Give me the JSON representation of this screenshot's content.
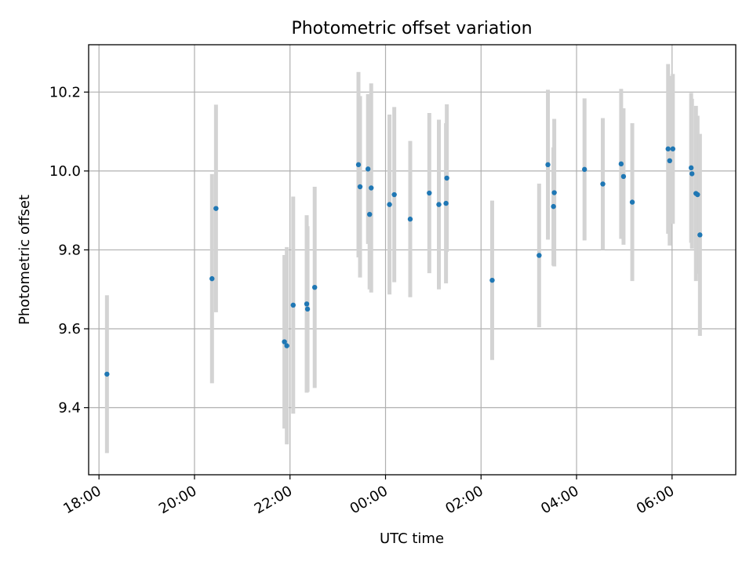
{
  "chart_data": {
    "type": "scatter",
    "title": "Photometric offset variation",
    "xlabel": "UTC time",
    "ylabel": "Photometric offset",
    "x_axis_type": "time",
    "xlim": [
      "18:00",
      "07:20"
    ],
    "ylim": [
      9.23,
      10.32
    ],
    "x_ticks": [
      "18:00",
      "20:00",
      "22:00",
      "00:00",
      "02:00",
      "04:00",
      "06:00"
    ],
    "y_ticks": [
      9.4,
      9.6,
      9.8,
      10.0,
      10.2
    ],
    "y_tick_labels": [
      "9.4",
      "9.6",
      "9.8",
      "10.0",
      "10.2"
    ],
    "grid": true,
    "marker_color": "#1f77b4",
    "errorbar_color": "#d3d3d3",
    "points": [
      {
        "x": "18:10",
        "y": 9.485,
        "err": 0.2
      },
      {
        "x": "20:22",
        "y": 9.727,
        "err": 0.265
      },
      {
        "x": "20:27",
        "y": 9.905,
        "err": 0.263
      },
      {
        "x": "21:53",
        "y": 9.567,
        "err": 0.22
      },
      {
        "x": "21:56",
        "y": 9.557,
        "err": 0.25
      },
      {
        "x": "22:04",
        "y": 9.66,
        "err": 0.275
      },
      {
        "x": "22:21",
        "y": 9.663,
        "err": 0.225
      },
      {
        "x": "22:22",
        "y": 9.65,
        "err": 0.21
      },
      {
        "x": "22:31",
        "y": 9.705,
        "err": 0.255
      },
      {
        "x": "23:26",
        "y": 10.016,
        "err": 0.235
      },
      {
        "x": "23:28",
        "y": 9.96,
        "err": 0.23
      },
      {
        "x": "23:38",
        "y": 10.005,
        "err": 0.19
      },
      {
        "x": "23:40",
        "y": 9.89,
        "err": 0.19
      },
      {
        "x": "23:42",
        "y": 9.957,
        "err": 0.265
      },
      {
        "x": "00:05",
        "y": 9.915,
        "err": 0.228
      },
      {
        "x": "00:11",
        "y": 9.94,
        "err": 0.222
      },
      {
        "x": "00:31",
        "y": 9.878,
        "err": 0.198
      },
      {
        "x": "00:55",
        "y": 9.944,
        "err": 0.203
      },
      {
        "x": "01:07",
        "y": 9.915,
        "err": 0.215
      },
      {
        "x": "01:16",
        "y": 9.918,
        "err": 0.203
      },
      {
        "x": "01:17",
        "y": 9.982,
        "err": 0.187
      },
      {
        "x": "02:14",
        "y": 9.723,
        "err": 0.202
      },
      {
        "x": "03:13",
        "y": 9.786,
        "err": 0.182
      },
      {
        "x": "03:24",
        "y": 10.016,
        "err": 0.19
      },
      {
        "x": "03:31",
        "y": 9.91,
        "err": 0.15
      },
      {
        "x": "03:32",
        "y": 9.945,
        "err": 0.187
      },
      {
        "x": "04:10",
        "y": 10.004,
        "err": 0.18
      },
      {
        "x": "04:33",
        "y": 9.967,
        "err": 0.167
      },
      {
        "x": "04:56",
        "y": 10.018,
        "err": 0.19
      },
      {
        "x": "04:59",
        "y": 9.986,
        "err": 0.173
      },
      {
        "x": "05:10",
        "y": 9.921,
        "err": 0.2
      },
      {
        "x": "05:55",
        "y": 10.056,
        "err": 0.215
      },
      {
        "x": "05:57",
        "y": 10.026,
        "err": 0.215
      },
      {
        "x": "06:01",
        "y": 10.056,
        "err": 0.19
      },
      {
        "x": "06:24",
        "y": 10.008,
        "err": 0.19
      },
      {
        "x": "06:25",
        "y": 9.993,
        "err": 0.19
      },
      {
        "x": "06:30",
        "y": 9.943,
        "err": 0.222
      },
      {
        "x": "06:32",
        "y": 9.94,
        "err": 0.2
      },
      {
        "x": "06:35",
        "y": 9.838,
        "err": 0.256
      }
    ]
  }
}
